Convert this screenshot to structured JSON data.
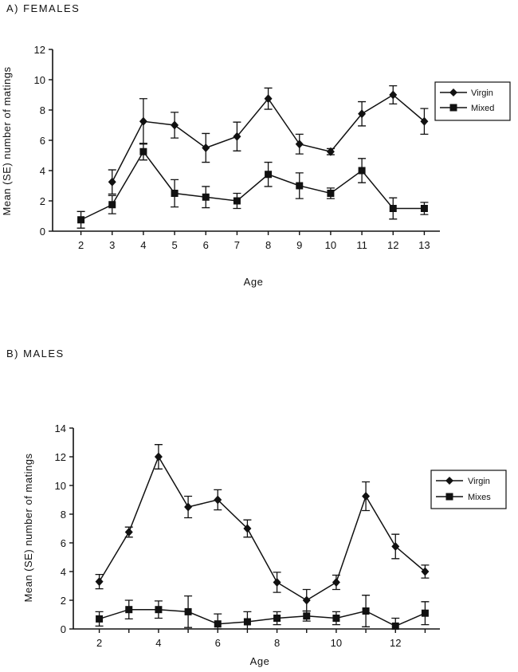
{
  "chart_data": [
    {
      "type": "line",
      "panel_title": "A) FEMALES",
      "xlabel": "Age",
      "ylabel": "Mean (SE) number of matings",
      "x": [
        2,
        3,
        4,
        5,
        6,
        7,
        8,
        9,
        10,
        11,
        12,
        13
      ],
      "xticks": [
        2,
        3,
        4,
        5,
        6,
        7,
        8,
        9,
        10,
        11,
        12,
        13
      ],
      "xlim": [
        1.5,
        13.5
      ],
      "ylim": [
        0,
        12
      ],
      "yticks": [
        0,
        2,
        4,
        6,
        8,
        10,
        12
      ],
      "legend_position": "right",
      "series": [
        {
          "name": "Virgin",
          "marker": "diamond",
          "x": [
            3,
            4,
            5,
            6,
            7,
            8,
            9,
            10,
            11,
            12,
            13
          ],
          "values": [
            3.25,
            7.25,
            7.0,
            5.5,
            6.25,
            8.75,
            5.75,
            5.25,
            7.75,
            9.0,
            7.25
          ],
          "error": [
            0.8,
            1.5,
            0.85,
            0.95,
            0.95,
            0.7,
            0.65,
            0.2,
            0.8,
            0.6,
            0.85
          ]
        },
        {
          "name": "Mixed",
          "marker": "square",
          "x": [
            2,
            3,
            4,
            5,
            6,
            7,
            8,
            9,
            10,
            11,
            12,
            13
          ],
          "values": [
            0.75,
            1.75,
            5.25,
            2.5,
            2.25,
            2.0,
            3.75,
            3.0,
            2.5,
            4.0,
            1.5,
            1.5
          ],
          "error": [
            0.55,
            0.6,
            0.55,
            0.9,
            0.7,
            0.5,
            0.8,
            0.85,
            0.35,
            0.8,
            0.7,
            0.4
          ]
        }
      ]
    },
    {
      "type": "line",
      "panel_title": "B) MALES",
      "xlabel": "Age",
      "ylabel": "Mean (SE) number of matings",
      "x": [
        2,
        3,
        4,
        5,
        6,
        7,
        8,
        9,
        10,
        11,
        12,
        13
      ],
      "xticks": [
        2,
        4,
        6,
        8,
        10,
        12
      ],
      "xlim": [
        1.5,
        13.5
      ],
      "ylim": [
        0,
        14
      ],
      "yticks": [
        0,
        2,
        4,
        6,
        8,
        10,
        12,
        14
      ],
      "legend_position": "right",
      "series": [
        {
          "name": "Virgin",
          "marker": "diamond",
          "x": [
            2,
            3,
            4,
            5,
            6,
            7,
            8,
            9,
            10,
            11,
            12,
            13
          ],
          "values": [
            3.3,
            6.75,
            12.0,
            8.5,
            9.0,
            7.0,
            3.25,
            2.0,
            3.25,
            9.25,
            5.75,
            4.0
          ],
          "error": [
            0.5,
            0.35,
            0.85,
            0.75,
            0.7,
            0.6,
            0.7,
            0.75,
            0.5,
            1.0,
            0.85,
            0.45
          ]
        },
        {
          "name": "Mixes",
          "marker": "square",
          "x": [
            2,
            3,
            4,
            5,
            6,
            7,
            8,
            9,
            10,
            11,
            12,
            13
          ],
          "values": [
            0.7,
            1.35,
            1.35,
            1.2,
            0.35,
            0.5,
            0.75,
            0.9,
            0.75,
            1.25,
            0.2,
            1.1
          ],
          "error": [
            0.5,
            0.65,
            0.6,
            1.1,
            0.7,
            0.7,
            0.45,
            0.35,
            0.45,
            1.1,
            0.55,
            0.8
          ]
        }
      ]
    }
  ]
}
